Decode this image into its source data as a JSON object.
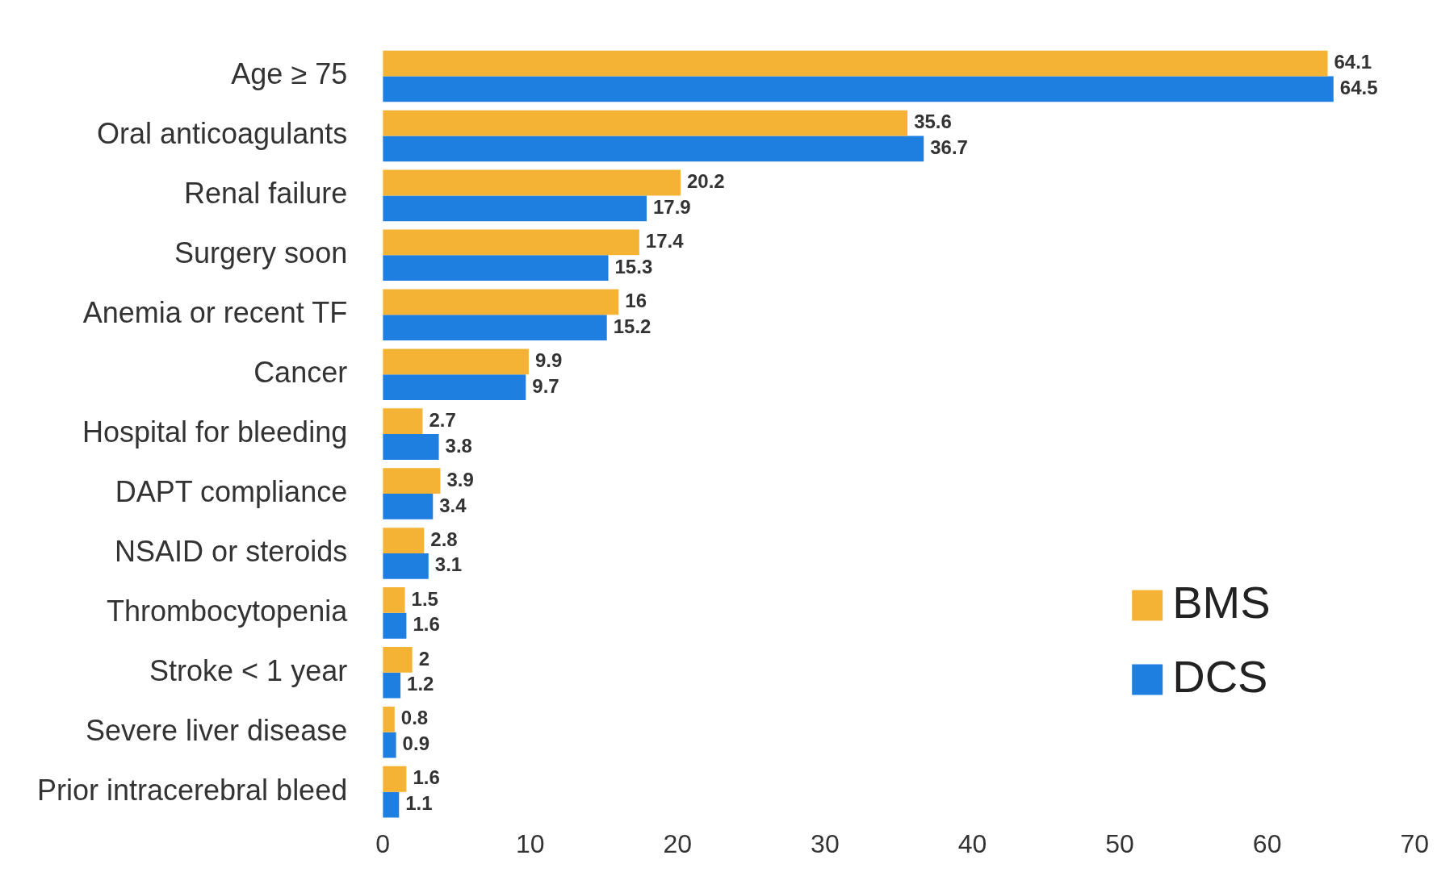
{
  "chart_data": {
    "type": "bar",
    "orientation": "horizontal",
    "categories": [
      "Age ≥ 75",
      "Oral anticoagulants",
      "Renal failure",
      "Surgery soon",
      "Anemia or recent TF",
      "Cancer",
      "Hospital for bleeding",
      "DAPT compliance",
      "NSAID or steroids",
      "Thrombocytopenia",
      "Stroke < 1 year",
      "Severe liver disease",
      "Prior intracerebral bleed"
    ],
    "series": [
      {
        "name": "BMS",
        "color": "#f5b335",
        "values": [
          64.1,
          35.6,
          20.2,
          17.4,
          16,
          9.9,
          2.7,
          3.9,
          2.8,
          1.5,
          2,
          0.8,
          1.6
        ]
      },
      {
        "name": "DCS",
        "color": "#1f7fe0",
        "values": [
          64.5,
          36.7,
          17.9,
          15.3,
          15.2,
          9.7,
          3.8,
          3.4,
          3.1,
          1.6,
          1.2,
          0.9,
          1.1
        ]
      }
    ],
    "xlim": [
      0,
      70
    ],
    "xticks": [
      0,
      10,
      20,
      30,
      40,
      50,
      60,
      70
    ],
    "grid": false,
    "data_labels": true,
    "legend": "bottom right"
  }
}
